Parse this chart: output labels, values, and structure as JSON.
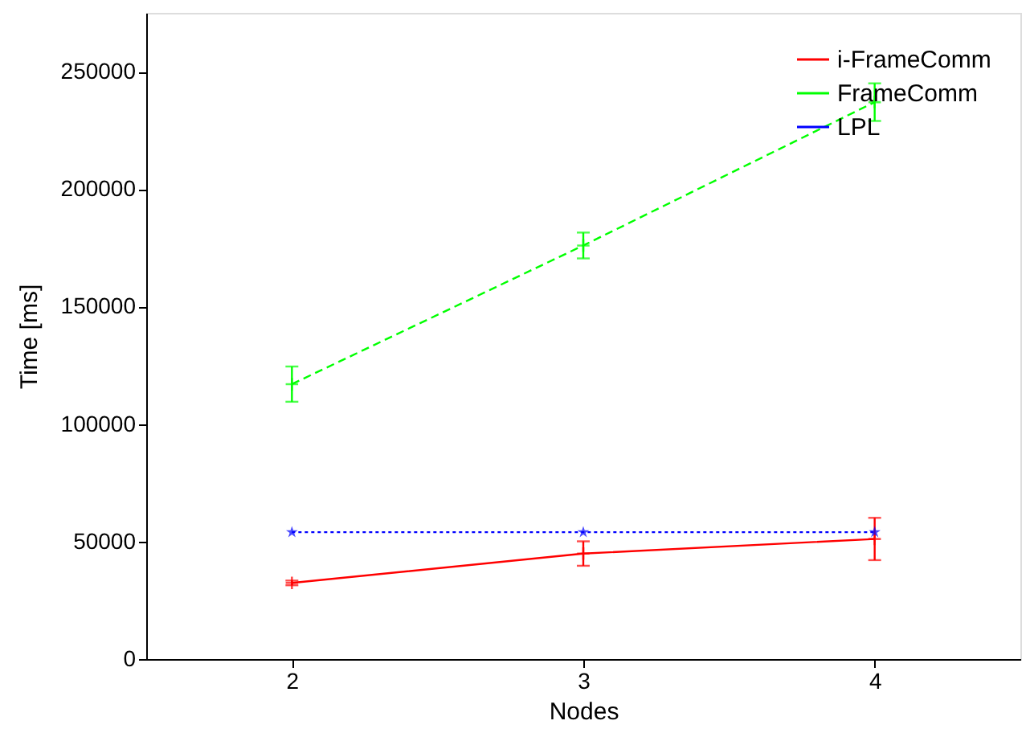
{
  "chart_data": {
    "type": "line",
    "xlabel": "Nodes",
    "ylabel": "Time [ms]",
    "x": [
      2,
      3,
      4
    ],
    "series": [
      {
        "name": "i-FrameComm",
        "color": "#ff0000",
        "values": [
          32400,
          44900,
          51100
        ],
        "errors": [
          1000,
          5200,
          9000
        ],
        "marker": "cross",
        "line_style": "solid"
      },
      {
        "name": "FrameComm",
        "color": "#00ff00",
        "values": [
          117000,
          176000,
          237000
        ],
        "errors": [
          7500,
          5500,
          8000
        ],
        "marker": "cross",
        "line_style": "dashed"
      },
      {
        "name": "LPL",
        "color": "#0000ff",
        "values": [
          54000,
          54000,
          54000
        ],
        "marker": "star",
        "line_style": "dotted"
      }
    ],
    "xlim": [
      1.5,
      4.5
    ],
    "xticks": [
      2,
      3,
      4
    ],
    "ylim": [
      0,
      275000
    ],
    "yticks": [
      0,
      50000,
      100000,
      150000,
      200000,
      250000
    ],
    "grid": false,
    "legend": "top right"
  }
}
